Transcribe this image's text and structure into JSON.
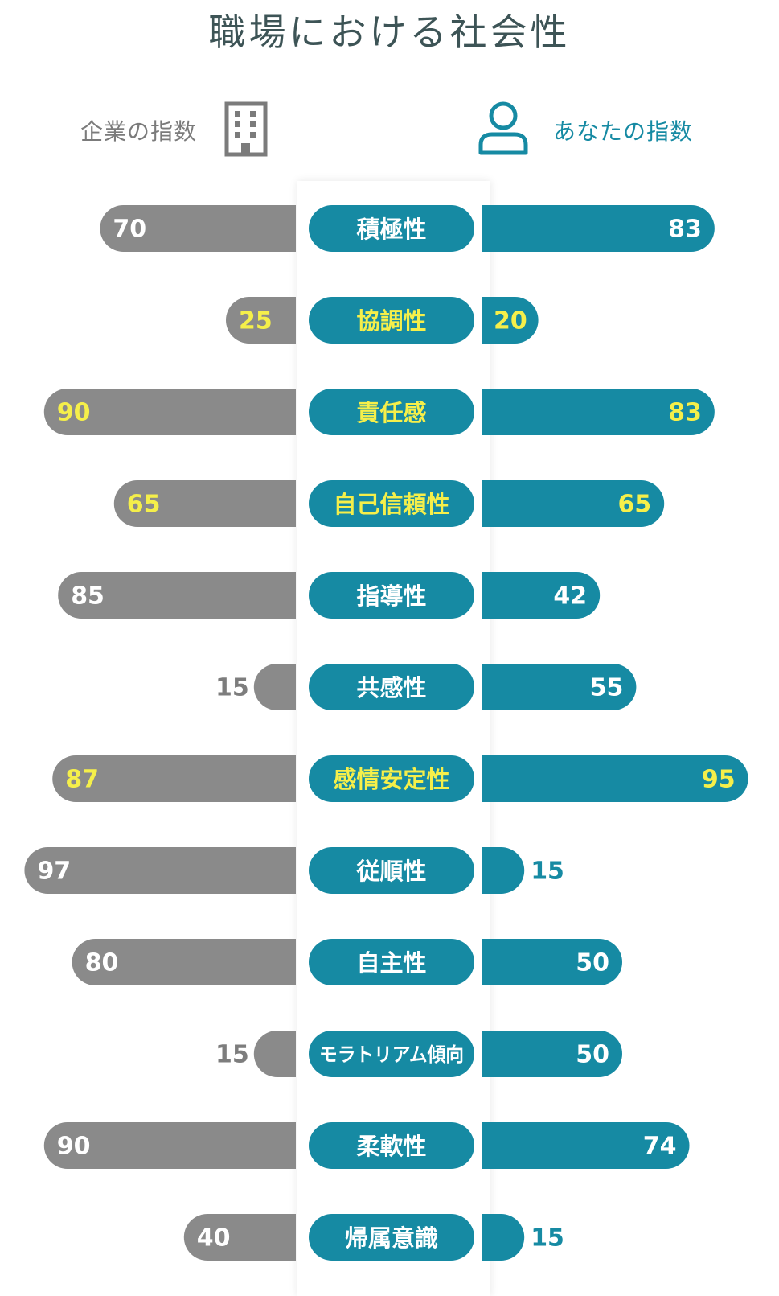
{
  "title": "職場における社会性",
  "legend": {
    "company": "企業の指数",
    "you": "あなたの指数"
  },
  "icons": {
    "company": "building-icon",
    "you": "person-icon"
  },
  "colors": {
    "company_bar": "#8a8a8a",
    "you_bar": "#168aa3",
    "pill": "#168aa3",
    "highlight_text": "#f5ef4a",
    "normal_text": "#ffffff",
    "outside_company_text": "#7d7d7d",
    "outside_you_text": "#168aa3"
  },
  "chart_data": {
    "type": "bar",
    "title": "職場における社会性",
    "categories": [
      "積極性",
      "協調性",
      "責任感",
      "自己信頼性",
      "指導性",
      "共感性",
      "感情安定性",
      "従順性",
      "自主性",
      "モラトリアム傾向",
      "柔軟性",
      "帰属意識"
    ],
    "series": [
      {
        "name": "企業の指数",
        "values": [
          70,
          25,
          90,
          65,
          85,
          15,
          87,
          97,
          80,
          15,
          90,
          40
        ]
      },
      {
        "name": "あなたの指数",
        "values": [
          83,
          20,
          83,
          65,
          42,
          55,
          95,
          15,
          50,
          50,
          74,
          15
        ]
      }
    ],
    "highlighted_categories": [
      "協調性",
      "責任感",
      "自己信頼性",
      "感情安定性"
    ],
    "ylim": [
      0,
      100
    ]
  }
}
